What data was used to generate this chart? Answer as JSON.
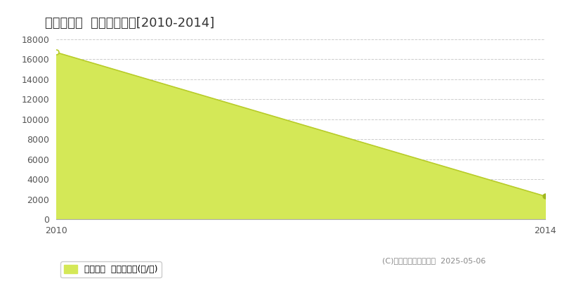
{
  "title": "野洲市須原  農地価格推移[2010-2014]",
  "years": [
    2010,
    2014
  ],
  "values": [
    16700,
    2300
  ],
  "fill_color": "#d4e857",
  "line_color": "#b8cc2a",
  "marker_color": "#a0b820",
  "ylim": [
    0,
    18000
  ],
  "yticks": [
    0,
    2000,
    4000,
    6000,
    8000,
    10000,
    12000,
    14000,
    16000,
    18000
  ],
  "xlim": [
    2010,
    2014
  ],
  "xticks": [
    2010,
    2014
  ],
  "legend_label": "農地価格  平均坪単価(円/坪)",
  "copyright": "(C)土地価格ドットコム  2025-05-06",
  "bg_color": "#ffffff",
  "plot_bg_color": "#ffffff",
  "grid_color": "#cccccc",
  "title_fontsize": 13,
  "tick_fontsize": 9,
  "legend_fontsize": 9,
  "copyright_fontsize": 8
}
